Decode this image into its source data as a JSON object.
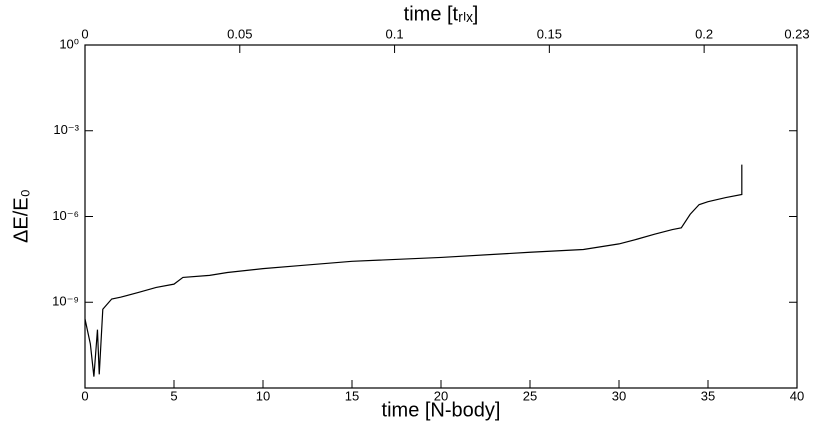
{
  "chart_data": {
    "type": "line",
    "xlabel": "time [N-body]",
    "x2label": "time [tᵣₗₓ]",
    "ylabel": "ΔE/E₀",
    "ylog": true,
    "xlim": [
      0,
      40
    ],
    "xticks": [
      0,
      5,
      10,
      15,
      20,
      25,
      30,
      35,
      40
    ],
    "x2lim": [
      0,
      0.23
    ],
    "x2ticks": [
      0,
      0.05,
      0.1,
      0.15,
      0.2,
      0.23
    ],
    "ylim": [
      1e-12,
      1
    ],
    "yticks": [
      {
        "value": 1,
        "label": "10⁰"
      },
      {
        "value": 0.001,
        "label": "10⁻³"
      },
      {
        "value": 1e-06,
        "label": "10⁻⁶"
      },
      {
        "value": 1e-09,
        "label": "10⁻⁹"
      }
    ],
    "series": [
      {
        "color": "#000000",
        "x": [
          0,
          0.3,
          0.5,
          0.7,
          0.8,
          1.0,
          1.5,
          2,
          3,
          4,
          5,
          5.5,
          7,
          8,
          10,
          12,
          15,
          20,
          25,
          28,
          30,
          31,
          32,
          33,
          33.5,
          34,
          34.5,
          35,
          36,
          36.9,
          36.9
        ],
        "values": [
          2.6e-10,
          3.5e-11,
          2.5e-12,
          1.1e-10,
          3e-12,
          5.7e-10,
          1.3e-09,
          1.5e-09,
          2.2e-09,
          3.3e-09,
          4.3e-09,
          7.4e-09,
          8.7e-09,
          1.1e-08,
          1.5e-08,
          1.9e-08,
          2.7e-08,
          3.7e-08,
          5.6e-08,
          7e-08,
          1.1e-07,
          1.6e-07,
          2.4e-07,
          3.5e-07,
          4e-07,
          1.2e-06,
          2.6e-06,
          3.3e-06,
          4.6e-06,
          5.9e-06,
          6.5e-05
        ]
      }
    ]
  }
}
